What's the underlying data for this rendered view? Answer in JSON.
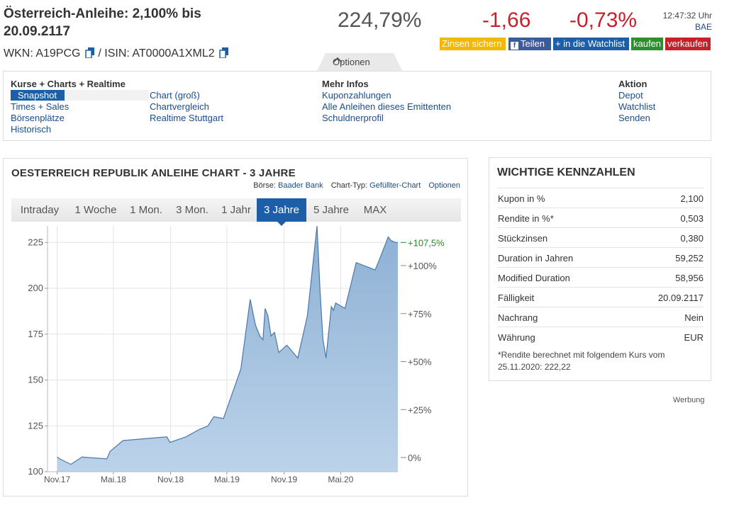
{
  "header": {
    "title": "Österreich-Anleihe: 2,100% bis 20.09.2117",
    "wkn_label": "WKN: A19PCG",
    "isin_label": " / ISIN: AT0000A1XML2",
    "price": "224,79%",
    "change_abs": "-1,66",
    "change_pct": "-0,73%",
    "time": "12:47:32 Uhr",
    "exchange": "BAE",
    "colors": {
      "negative": "#c8202a",
      "accent": "#1d5ea8"
    }
  },
  "actions": {
    "zinsen": "Zinsen sichern",
    "teilen": "Teilen",
    "watchlist": "+ in die Watchlist",
    "kaufen": "kaufen",
    "verkaufen": "verkaufen"
  },
  "options_tab": "Optionen",
  "menu": {
    "kurse": {
      "heading": "Kurse + Charts + Realtime",
      "col1": [
        "Snapshot",
        "Times + Sales",
        "Börsenplätze",
        "Historisch"
      ],
      "col2": [
        "Chart (groß)",
        "Chartvergleich",
        "Realtime Stuttgart"
      ]
    },
    "mehr": {
      "heading": "Mehr Infos",
      "items": [
        "Kuponzahlungen",
        "Alle Anleihen dieses Emittenten",
        "Schuldnerprofil"
      ]
    },
    "aktion": {
      "heading": "Aktion",
      "items": [
        "Depot",
        "Watchlist",
        "Senden"
      ]
    }
  },
  "chart_panel": {
    "title": "OESTERREICH REPUBLIK ANLEIHE CHART - 3 JAHRE",
    "boerse_label": "Börse:",
    "boerse_value": "Baader Bank",
    "typ_label": "Chart-Typ:",
    "typ_value": "Gefüllter-Chart",
    "optionen": "Optionen",
    "tabs": [
      "Intraday",
      "1 Woche",
      "1 Mon.",
      "3 Mon.",
      "1 Jahr",
      "3 Jahre",
      "5 Jahre",
      "MAX"
    ],
    "active_tab": "3 Jahre"
  },
  "chart_data": {
    "type": "area",
    "x_ticks": [
      "Nov.17",
      "Mai.18",
      "Nov.18",
      "Mai.19",
      "Nov.19",
      "Mai.20"
    ],
    "y_ticks_left": [
      100,
      125,
      150,
      175,
      200,
      225
    ],
    "y_ticks_right": [
      "0%",
      "+25%",
      "+50%",
      "+75%",
      "+100%"
    ],
    "last_label": "+107,5%",
    "ylim": [
      100,
      234
    ],
    "xlim": [
      "2017-10",
      "2020-11"
    ],
    "series": [
      {
        "x": [
          "2017-11-01",
          "2017-11-10",
          "2017-12-15",
          "2018-01-20",
          "2018-04-10",
          "2018-04-20",
          "2018-06-01",
          "2018-10-20",
          "2018-10-30",
          "2018-12-20",
          "2019-02-01",
          "2019-03-01",
          "2019-03-20",
          "2019-04-20",
          "2019-06-15",
          "2019-07-15",
          "2019-08-01",
          "2019-08-15",
          "2019-08-25",
          "2019-09-01",
          "2019-09-10",
          "2019-09-20",
          "2019-10-01",
          "2019-10-15",
          "2019-11-10",
          "2019-12-15",
          "2020-01-15",
          "2020-02-15",
          "2020-02-25",
          "2020-03-05",
          "2020-03-15",
          "2020-04-01",
          "2020-04-08",
          "2020-04-15",
          "2020-05-15",
          "2020-06-20",
          "2020-08-20",
          "2020-09-01",
          "2020-10-01",
          "2020-10-10",
          "2020-10-25",
          "2020-11-01"
        ],
        "y": [
          108,
          107,
          104,
          108,
          107,
          111,
          117,
          119,
          116,
          119,
          123,
          125,
          130,
          129,
          156,
          194,
          180,
          174,
          172,
          189,
          185,
          174,
          176,
          165,
          169,
          162,
          185,
          234,
          198,
          172,
          162,
          190,
          188,
          192,
          189,
          214,
          210,
          215,
          228,
          226,
          225,
          225
        ]
      }
    ]
  },
  "kennzahlen": {
    "title": "WICHTIGE KENNZAHLEN",
    "rows": [
      {
        "label": "Kupon in %",
        "value": "2,100"
      },
      {
        "label": "Rendite in %*",
        "value": "0,503"
      },
      {
        "label": "Stückzinsen",
        "value": "0,380"
      },
      {
        "label": "Duration in Jahren",
        "value": "59,252"
      },
      {
        "label": "Modified Duration",
        "value": "58,956"
      },
      {
        "label": "Fälligkeit",
        "value": "20.09.2117"
      },
      {
        "label": "Nachrang",
        "value": "Nein"
      },
      {
        "label": "Währung",
        "value": "EUR"
      }
    ],
    "note": "*Rendite berechnet mit folgendem Kurs vom 25.11.2020: 222,22"
  },
  "werbung": "Werbung"
}
